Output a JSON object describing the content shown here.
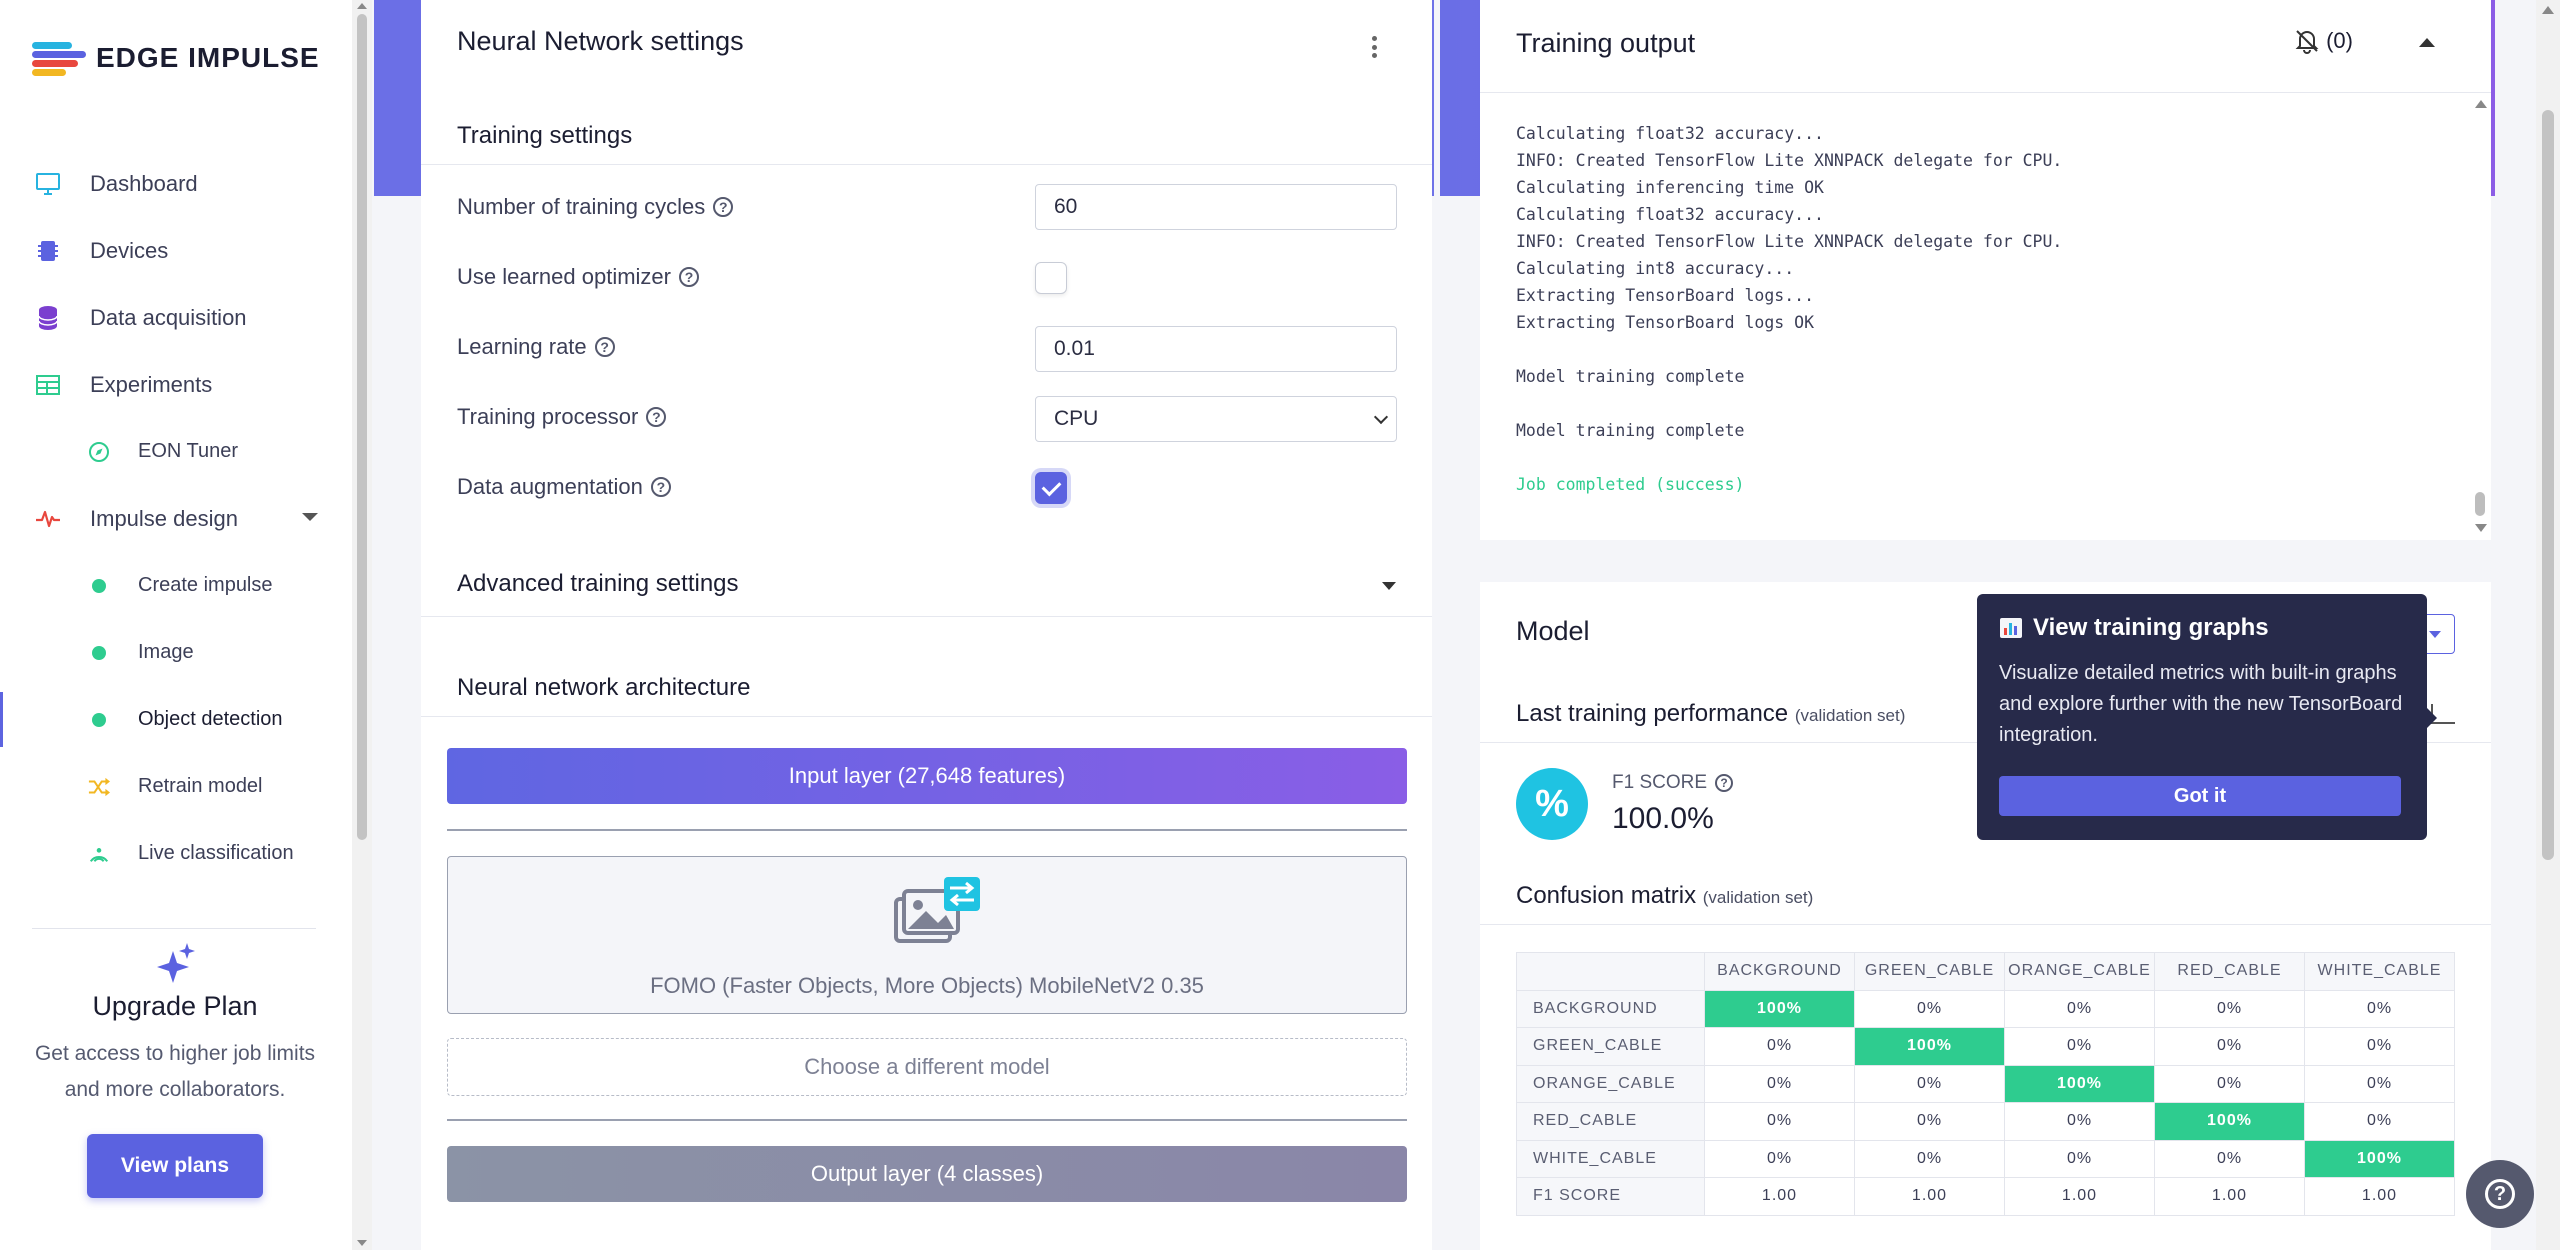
{
  "app": {
    "name": "EDGE IMPULSE"
  },
  "sidebar": {
    "items": [
      {
        "label": "Dashboard",
        "icon": "monitor-icon",
        "color": "#27b3e0"
      },
      {
        "label": "Devices",
        "icon": "chip-icon",
        "color": "#5b62e0"
      },
      {
        "label": "Data acquisition",
        "icon": "database-icon",
        "color": "#7b3fcf"
      },
      {
        "label": "Experiments",
        "icon": "table-icon",
        "color": "#2ecc8f"
      },
      {
        "label": "EON Tuner",
        "icon": "compass-icon",
        "color": "#2ecc8f"
      },
      {
        "label": "Impulse design",
        "icon": "pulse-icon",
        "color": "#e8473e"
      },
      {
        "label": "Create impulse",
        "icon": "dot-icon",
        "color": "#2ecc8f"
      },
      {
        "label": "Image",
        "icon": "dot-icon",
        "color": "#2ecc8f"
      },
      {
        "label": "Object detection",
        "icon": "dot-icon",
        "color": "#2ecc8f"
      },
      {
        "label": "Retrain model",
        "icon": "shuffle-icon",
        "color": "#f2b722"
      },
      {
        "label": "Live classification",
        "icon": "signal-icon",
        "color": "#2ecc8f"
      }
    ],
    "upgrade": {
      "title": "Upgrade Plan",
      "text": "Get access to higher job limits and more collaborators.",
      "button": "View plans"
    }
  },
  "nn": {
    "title": "Neural Network settings",
    "training_settings": "Training settings",
    "fields": {
      "cycles_label": "Number of training cycles",
      "cycles_value": "60",
      "learned_opt_label": "Use learned optimizer",
      "learned_opt_checked": false,
      "lr_label": "Learning rate",
      "lr_value": "0.01",
      "processor_label": "Training processor",
      "processor_value": "CPU",
      "augmentation_label": "Data augmentation",
      "augmentation_checked": true
    },
    "advanced": "Advanced training settings",
    "architecture": "Neural network architecture",
    "input_layer": "Input layer (27,648 features)",
    "model_name": "FOMO (Faster Objects, More Objects) MobileNetV2 0.35",
    "choose_model": "Choose a different model",
    "output_layer": "Output layer (4 classes)"
  },
  "output": {
    "title": "Training output",
    "notif_count": "(0)",
    "log": [
      "Calculating float32 accuracy...",
      "INFO: Created TensorFlow Lite XNNPACK delegate for CPU.",
      "Calculating inferencing time OK",
      "Calculating float32 accuracy...",
      "INFO: Created TensorFlow Lite XNNPACK delegate for CPU.",
      "Calculating int8 accuracy...",
      "Extracting TensorBoard logs...",
      "Extracting TensorBoard logs OK",
      "",
      "Model training complete",
      "",
      "Model training complete",
      "",
      "Job completed (success)"
    ]
  },
  "model": {
    "title": "Model",
    "last_perf": "Last training performance",
    "validation_set": "(validation set)",
    "f1_label": "F1 SCORE",
    "f1_value": "100.0%",
    "f1_symbol": "%",
    "confusion_title": "Confusion matrix",
    "confusion": {
      "columns": [
        "BACKGROUND",
        "GREEN_CABLE",
        "ORANGE_CABLE",
        "RED_CABLE",
        "WHITE_CABLE"
      ],
      "rows": [
        {
          "label": "BACKGROUND",
          "values": [
            "100%",
            "0%",
            "0%",
            "0%",
            "0%"
          ]
        },
        {
          "label": "GREEN_CABLE",
          "values": [
            "0%",
            "100%",
            "0%",
            "0%",
            "0%"
          ]
        },
        {
          "label": "ORANGE_CABLE",
          "values": [
            "0%",
            "0%",
            "100%",
            "0%",
            "0%"
          ]
        },
        {
          "label": "RED_CABLE",
          "values": [
            "0%",
            "0%",
            "0%",
            "100%",
            "0%"
          ]
        },
        {
          "label": "WHITE_CABLE",
          "values": [
            "0%",
            "0%",
            "0%",
            "0%",
            "100%"
          ]
        }
      ],
      "f1_row": {
        "label": "F1 SCORE",
        "values": [
          "1.00",
          "1.00",
          "1.00",
          "1.00",
          "1.00"
        ]
      }
    }
  },
  "tooltip": {
    "title": "View training graphs",
    "text": "Visualize detailed metrics with built-in graphs and explore further with the new TensorBoard integration.",
    "button": "Got it"
  }
}
